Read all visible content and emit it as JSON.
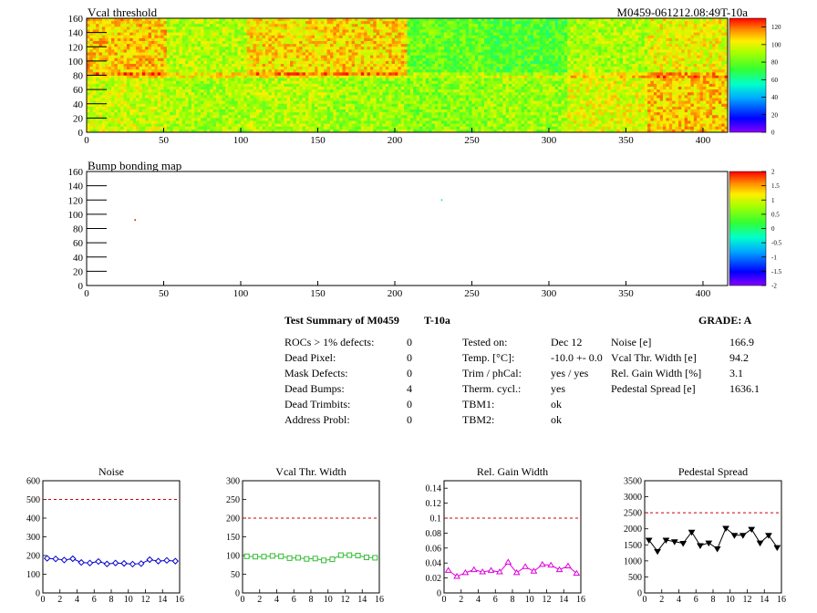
{
  "header": {
    "title": "Vcal threshold",
    "module_id": "M0459-061212.08:49T-10a"
  },
  "maps": {
    "xticks": [
      "0",
      "50",
      "100",
      "150",
      "200",
      "250",
      "300",
      "350",
      "400"
    ],
    "yticks": [
      "0",
      "20",
      "40",
      "60",
      "80",
      "100",
      "120",
      "140",
      "160"
    ],
    "vcal_palette_labels": [
      "0",
      "20",
      "40",
      "60",
      "80",
      "100",
      "120"
    ],
    "bump_title": "Bump bonding map",
    "bump_palette_labels": [
      "-2",
      "-1.5",
      "-1",
      "-0.5",
      "0",
      "0.5",
      "1",
      "1.5",
      "2"
    ]
  },
  "summary": {
    "title": "Test Summary of M0459",
    "temp_tag": "T-10a",
    "grade": "GRADE:  A",
    "col1": [
      {
        "label": "ROCs > 1% defects:",
        "value": "0"
      },
      {
        "label": "Dead Pixel:",
        "value": "0"
      },
      {
        "label": "Mask Defects:",
        "value": "0"
      },
      {
        "label": "Dead Bumps:",
        "value": "4"
      },
      {
        "label": "Dead Trimbits:",
        "value": "0"
      },
      {
        "label": "Address Probl:",
        "value": "0"
      }
    ],
    "col2": [
      {
        "label": "Tested on:",
        "value": "Dec 12"
      },
      {
        "label": "Temp. [°C]:",
        "value": "-10.0 +- 0.0"
      },
      {
        "label": "Trim / phCal:",
        "value": "yes / yes"
      },
      {
        "label": "Therm. cycl.:",
        "value": "yes"
      },
      {
        "label": "TBM1:",
        "value": "ok"
      },
      {
        "label": "TBM2:",
        "value": "ok"
      }
    ],
    "col3": [
      {
        "label": "Noise [e]",
        "value": "166.9"
      },
      {
        "label": "Vcal Thr. Width [e]",
        "value": "94.2"
      },
      {
        "label": "Rel. Gain Width [%]",
        "value": "3.1"
      },
      {
        "label": "Pedestal Spread [e]",
        "value": "1636.1"
      }
    ]
  },
  "colors": {
    "noise": "#0000cc",
    "vcal": "#33bb33",
    "gain": "#dd00dd",
    "pedestal": "#000000",
    "limit": "#cc0000"
  },
  "chart_data": [
    {
      "type": "heatmap",
      "title": "Vcal threshold",
      "xlim": [
        0,
        416
      ],
      "ylim": [
        0,
        160
      ],
      "z_range": [
        0,
        130
      ],
      "roc_layout": "2 rows x 8 ROCs",
      "roc_mean_values": [
        [
          95,
          90,
          92,
          88,
          85,
          88,
          98,
          108
        ],
        [
          108,
          92,
          105,
          106,
          80,
          76,
          90,
          100
        ]
      ]
    },
    {
      "type": "heatmap",
      "title": "Bump bonding map",
      "xlim": [
        0,
        416
      ],
      "ylim": [
        0,
        160
      ],
      "z_range": [
        -2,
        2
      ],
      "points": [
        {
          "x": 31,
          "y": 93,
          "z": 2
        },
        {
          "x": 230,
          "y": 121,
          "z": -0.5
        }
      ]
    },
    {
      "type": "line",
      "title": "Noise",
      "x": [
        0,
        1,
        2,
        3,
        4,
        5,
        6,
        7,
        8,
        9,
        10,
        11,
        12,
        13,
        14,
        15
      ],
      "values": [
        185,
        182,
        176,
        183,
        163,
        160,
        168,
        155,
        160,
        158,
        154,
        157,
        178,
        170,
        174,
        170
      ],
      "ylim": [
        0,
        600
      ],
      "xlim": [
        0,
        16
      ],
      "limit": 500,
      "yticks": [
        "0",
        "100",
        "200",
        "300",
        "400",
        "500",
        "600"
      ],
      "xticks": [
        "0",
        "2",
        "4",
        "6",
        "8",
        "10",
        "12",
        "14",
        "16"
      ]
    },
    {
      "type": "line",
      "title": "Vcal Thr. Width",
      "x": [
        0,
        1,
        2,
        3,
        4,
        5,
        6,
        7,
        8,
        9,
        10,
        11,
        12,
        13,
        14,
        15
      ],
      "values": [
        98,
        97,
        97,
        99,
        98,
        93,
        94,
        91,
        92,
        87,
        90,
        101,
        101,
        100,
        95,
        94
      ],
      "ylim": [
        0,
        300
      ],
      "xlim": [
        0,
        16
      ],
      "limit": 200,
      "yticks": [
        "0",
        "50",
        "100",
        "150",
        "200",
        "250",
        "300"
      ],
      "xticks": [
        "0",
        "2",
        "4",
        "6",
        "8",
        "10",
        "12",
        "14",
        "16"
      ]
    },
    {
      "type": "line",
      "title": "Rel. Gain Width",
      "x": [
        0,
        1,
        2,
        3,
        4,
        5,
        6,
        7,
        8,
        9,
        10,
        11,
        12,
        13,
        14,
        15
      ],
      "values": [
        0.03,
        0.022,
        0.027,
        0.031,
        0.028,
        0.03,
        0.028,
        0.041,
        0.027,
        0.035,
        0.029,
        0.038,
        0.037,
        0.031,
        0.036,
        0.026
      ],
      "ylim": [
        0,
        0.15
      ],
      "xlim": [
        0,
        16
      ],
      "limit": 0.1,
      "yticks": [
        "0",
        "0.02",
        "0.04",
        "0.06",
        "0.08",
        "0.1",
        "0.12",
        "0.14"
      ],
      "xticks": [
        "0",
        "2",
        "4",
        "6",
        "8",
        "10",
        "12",
        "14",
        "16"
      ]
    },
    {
      "type": "line",
      "title": "Pedestal Spread",
      "x": [
        0,
        1,
        2,
        3,
        4,
        5,
        6,
        7,
        8,
        9,
        10,
        11,
        12,
        13,
        14,
        15
      ],
      "values": [
        1650,
        1300,
        1650,
        1600,
        1550,
        1900,
        1480,
        1560,
        1380,
        2020,
        1800,
        1800,
        1990,
        1560,
        1800,
        1420
      ],
      "ylim": [
        0,
        3500
      ],
      "xlim": [
        0,
        16
      ],
      "limit": 2500,
      "yticks": [
        "0",
        "500",
        "1000",
        "1500",
        "2000",
        "2500",
        "3000",
        "3500"
      ],
      "xticks": [
        "0",
        "2",
        "4",
        "6",
        "8",
        "10",
        "12",
        "14",
        "16"
      ]
    }
  ]
}
